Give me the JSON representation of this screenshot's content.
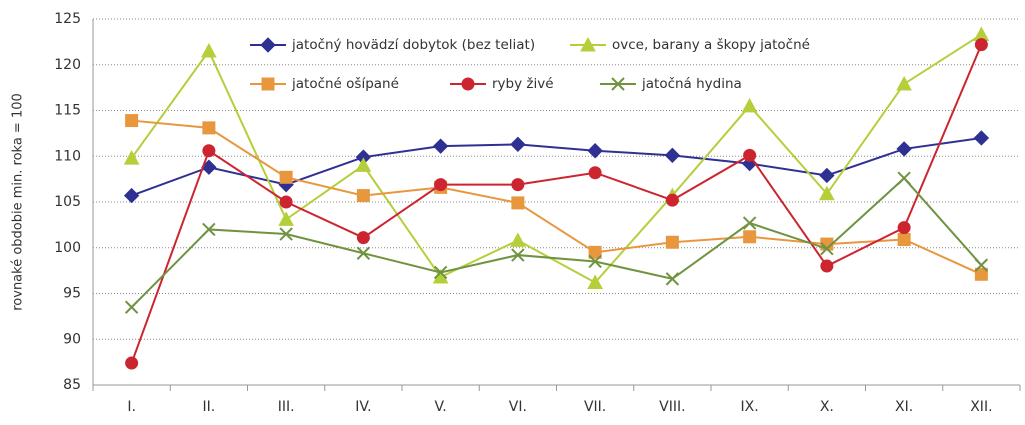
{
  "chart_data": {
    "type": "line",
    "ylabel": "rovnaké obdobie min. roka = 100",
    "categories": [
      "I.",
      "II.",
      "III.",
      "IV.",
      "V.",
      "VI.",
      "VII.",
      "VIII.",
      "IX.",
      "X.",
      "XI.",
      "XII."
    ],
    "series": [
      {
        "name": "jatočný hovädzí dobytok (bez teliat)",
        "color": "#2e3192",
        "marker": "diamond",
        "values": [
          105.7,
          108.8,
          106.9,
          109.9,
          111.1,
          111.3,
          110.6,
          110.1,
          109.2,
          107.9,
          110.8,
          112.0
        ]
      },
      {
        "name": "ovce, barany a škopy jatočné",
        "color": "#b5cf3a",
        "marker": "triangle",
        "values": [
          109.8,
          121.5,
          103.1,
          109.0,
          96.8,
          100.8,
          96.2,
          105.7,
          115.5,
          105.9,
          117.9,
          123.3
        ]
      },
      {
        "name": "jatočné ošípané",
        "color": "#e8973f",
        "marker": "square",
        "values": [
          113.9,
          113.1,
          107.7,
          105.7,
          106.6,
          104.9,
          99.5,
          100.6,
          101.2,
          100.4,
          100.9,
          97.1
        ]
      },
      {
        "name": "ryby živé",
        "color": "#cc2530",
        "marker": "circle",
        "values": [
          87.4,
          110.6,
          105.0,
          101.1,
          106.9,
          106.9,
          108.2,
          105.2,
          110.1,
          98.0,
          102.2,
          122.2
        ]
      },
      {
        "name": "jatočná hydina",
        "color": "#6f9340",
        "marker": "x",
        "values": [
          93.5,
          102.0,
          101.5,
          99.4,
          97.3,
          99.2,
          98.5,
          96.6,
          102.7,
          99.9,
          107.6,
          98.1
        ]
      }
    ],
    "ylim": [
      85,
      125
    ],
    "yticks": [
      85,
      90,
      95,
      100,
      105,
      110,
      115,
      120,
      125
    ],
    "grid": true,
    "legend": "top"
  }
}
